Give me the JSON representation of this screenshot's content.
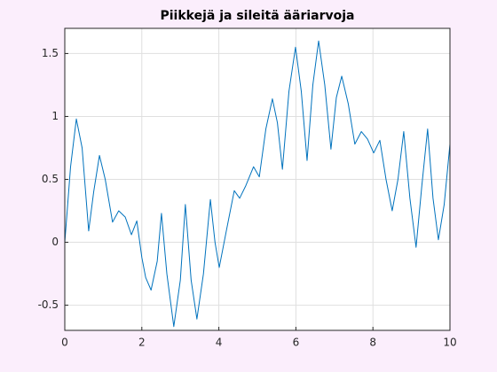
{
  "chart_data": {
    "type": "line",
    "title": "Piikkejä ja sileitä ääriarvoja",
    "x": [
      0,
      0.15,
      0.3,
      0.45,
      0.62,
      0.75,
      0.9,
      1.05,
      1.24,
      1.4,
      1.57,
      1.73,
      1.87,
      2.0,
      2.1,
      2.24,
      2.4,
      2.51,
      2.65,
      2.83,
      3.0,
      3.13,
      3.28,
      3.43,
      3.6,
      3.78,
      3.9,
      4.01,
      4.2,
      4.4,
      4.54,
      4.7,
      4.9,
      5.05,
      5.22,
      5.39,
      5.52,
      5.65,
      5.82,
      5.99,
      6.14,
      6.29,
      6.44,
      6.59,
      6.75,
      6.91,
      7.05,
      7.19,
      7.36,
      7.53,
      7.7,
      7.86,
      8.02,
      8.18,
      8.34,
      8.5,
      8.65,
      8.8,
      8.96,
      9.12,
      9.27,
      9.42,
      9.56,
      9.7,
      9.85,
      10
    ],
    "series": [
      {
        "color": "#0072bd",
        "values": [
          0,
          0.6,
          0.98,
          0.75,
          0.09,
          0.4,
          0.69,
          0.5,
          0.16,
          0.25,
          0.2,
          0.06,
          0.17,
          -0.12,
          -0.28,
          -0.38,
          -0.15,
          0.23,
          -0.25,
          -0.67,
          -0.3,
          0.3,
          -0.3,
          -0.61,
          -0.25,
          0.34,
          0.0,
          -0.2,
          0.1,
          0.41,
          0.35,
          0.45,
          0.6,
          0.52,
          0.9,
          1.14,
          0.95,
          0.58,
          1.2,
          1.55,
          1.2,
          0.65,
          1.25,
          1.6,
          1.25,
          0.74,
          1.15,
          1.32,
          1.1,
          0.78,
          0.88,
          0.82,
          0.71,
          0.81,
          0.5,
          0.25,
          0.5,
          0.88,
          0.35,
          -0.04,
          0.45,
          0.9,
          0.35,
          0.02,
          0.3,
          0.78
        ]
      }
    ],
    "xlim": [
      0,
      10
    ],
    "xticks": [
      0,
      2,
      4,
      6,
      8,
      10
    ],
    "ylim": [
      -0.7,
      1.7
    ],
    "yticks": [
      -0.5,
      0,
      0.5,
      1,
      1.5
    ],
    "grid": true
  }
}
